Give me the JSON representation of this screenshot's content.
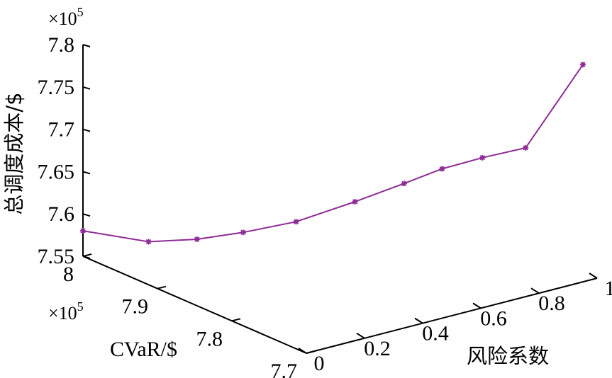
{
  "chart_data": {
    "type": "line-3d",
    "xlabel": "风险系数",
    "ylabel": "CVaR/$",
    "zlabel": "总调度成本/$",
    "x_ticks": [
      "0",
      "0.2",
      "0.4",
      "0.6",
      "0.8",
      "1"
    ],
    "y_ticks": [
      "7.7",
      "7.8",
      "7.9",
      "8"
    ],
    "z_ticks": [
      "7.55",
      "7.6",
      "7.65",
      "7.7",
      "7.75",
      "7.8"
    ],
    "y_multiplier": "×10",
    "y_multiplier_exp": "5",
    "z_multiplier": "×10",
    "z_multiplier_exp": "5",
    "xlim": [
      0,
      1
    ],
    "ylim": [
      7.7,
      8.0
    ],
    "zlim": [
      7.55,
      7.8
    ],
    "grid": false,
    "marker": "asterisk",
    "color": "#8e2a96",
    "series": [
      {
        "points": [
          {
            "x": 0.0,
            "y": 8.0,
            "z": 7.58
          },
          {
            "x": 0.1,
            "y": 7.951,
            "z": 7.577
          },
          {
            "x": 0.2,
            "y": 7.925,
            "z": 7.581
          },
          {
            "x": 0.3,
            "y": 7.902,
            "z": 7.589
          },
          {
            "x": 0.4,
            "y": 7.87,
            "z": 7.605
          },
          {
            "x": 0.5,
            "y": 7.83,
            "z": 7.635
          },
          {
            "x": 0.6,
            "y": 7.803,
            "z": 7.658
          },
          {
            "x": 0.7,
            "y": 7.791,
            "z": 7.671
          },
          {
            "x": 0.8,
            "y": 7.776,
            "z": 7.681
          },
          {
            "x": 0.9,
            "y": 7.757,
            "z": 7.691
          },
          {
            "x": 1.0,
            "y": 7.719,
            "z": 7.795
          }
        ]
      }
    ]
  }
}
